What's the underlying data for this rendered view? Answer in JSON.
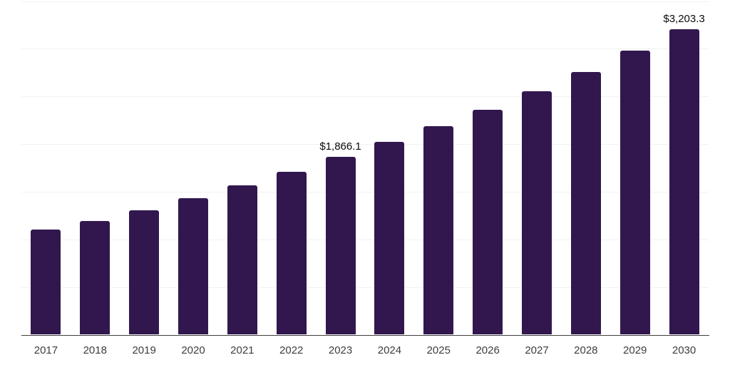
{
  "chart_data": {
    "type": "bar",
    "title": "",
    "xlabel": "",
    "ylabel": "",
    "categories": [
      "2017",
      "2018",
      "2019",
      "2020",
      "2021",
      "2022",
      "2023",
      "2024",
      "2025",
      "2026",
      "2027",
      "2028",
      "2029",
      "2030"
    ],
    "values": [
      1100,
      1190,
      1308,
      1429,
      1570,
      1712,
      1866.1,
      2025,
      2190,
      2362,
      2555,
      2757,
      2980,
      3203.3
    ],
    "data_labels": [
      {
        "index": 6,
        "text": "$1,866.1"
      },
      {
        "index": 13,
        "text": "$3,203.3"
      }
    ],
    "ylim": [
      0,
      3500
    ],
    "gridline_step": 500,
    "grid": true,
    "legend": "none",
    "colors": {
      "bar": "#32174f",
      "gridline": "#f2f2f2",
      "axis_line": "#3f3f3f",
      "tick_label": "#3d3d3d",
      "data_label": "#0a0a0a",
      "background": "#ffffff"
    }
  }
}
